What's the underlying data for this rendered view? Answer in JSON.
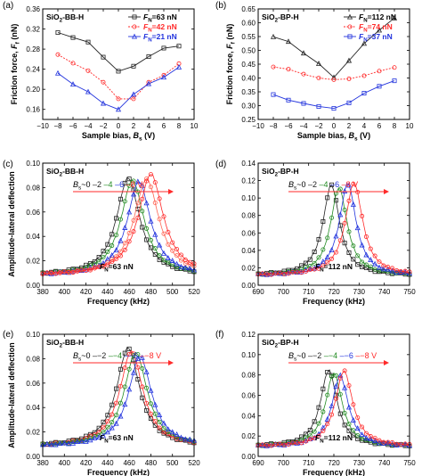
{
  "chart_data": [
    {
      "letter": "(a)",
      "type": "line",
      "title": "SiO2-BB-H",
      "xlabel": "Sample bias, B_s (V)",
      "ylabel": "Friction force, F_f (nN)",
      "x": [
        -8,
        -6,
        -4,
        -2,
        0,
        2,
        4,
        6,
        8
      ],
      "xlim": [
        -10,
        10
      ],
      "ylim": [
        0.14,
        0.36
      ],
      "xticks": [
        -10,
        -8,
        -6,
        -4,
        -2,
        0,
        2,
        4,
        6,
        8,
        10
      ],
      "yticks": [
        0.16,
        0.2,
        0.24,
        0.28,
        0.32,
        0.36
      ],
      "ytick_labels": [
        "0.16",
        "0.20",
        "0.24",
        "0.28",
        "0.32",
        "0.36"
      ],
      "legend_position": "top-right",
      "series": [
        {
          "name": "F_N=63 nN",
          "color": "#222222",
          "marker": "square",
          "dash": "",
          "values": [
            0.313,
            0.303,
            0.294,
            0.264,
            0.236,
            0.246,
            0.265,
            0.282,
            0.286
          ]
        },
        {
          "name": "F_N=42 nN",
          "color": "#ff2a2a",
          "marker": "circle",
          "dash": "2,1.5",
          "values": [
            0.269,
            0.252,
            0.237,
            0.214,
            0.181,
            0.181,
            0.214,
            0.228,
            0.251
          ]
        },
        {
          "name": "F_N=21 nN",
          "color": "#2233dd",
          "marker": "triangle",
          "dash": "",
          "values": [
            0.232,
            0.21,
            0.195,
            0.172,
            0.16,
            0.19,
            0.211,
            0.224,
            0.244
          ]
        }
      ]
    },
    {
      "letter": "(b)",
      "type": "line",
      "title": "SiO2-BP-H",
      "xlabel": "Sample bias, B_s (V)",
      "ylabel": "Friction force, F_f (nN)",
      "x": [
        -8,
        -6,
        -4,
        -2,
        0,
        2,
        4,
        6,
        8
      ],
      "xlim": [
        -10,
        10
      ],
      "ylim": [
        0.25,
        0.65
      ],
      "xticks": [
        -10,
        -8,
        -6,
        -4,
        -2,
        0,
        2,
        4,
        6,
        8,
        10
      ],
      "yticks": [
        0.25,
        0.3,
        0.35,
        0.4,
        0.45,
        0.5,
        0.55,
        0.6,
        0.65
      ],
      "ytick_labels": [
        "0.25",
        "0.30",
        "0.35",
        "0.40",
        "0.45",
        "0.50",
        "0.55",
        "0.60",
        "0.65"
      ],
      "legend_position": "top-right",
      "series": [
        {
          "name": "F_N=112 nN",
          "color": "#222222",
          "marker": "triangle-open",
          "dash": "",
          "values": [
            0.549,
            0.532,
            0.49,
            0.452,
            0.402,
            0.463,
            0.525,
            0.573,
            0.617
          ]
        },
        {
          "name": "F_N=74 nN",
          "color": "#ff2a2a",
          "marker": "circle",
          "dash": "2,1.5",
          "values": [
            0.44,
            0.432,
            0.414,
            0.4,
            0.394,
            0.397,
            0.408,
            0.425,
            0.438
          ]
        },
        {
          "name": "F_N=37 nN",
          "color": "#2233dd",
          "marker": "square",
          "dash": "",
          "values": [
            0.34,
            0.32,
            0.308,
            0.297,
            0.29,
            0.31,
            0.345,
            0.37,
            0.39
          ]
        }
      ]
    },
    {
      "letter": "(c)",
      "type": "line",
      "title": "SiO2-BB-H",
      "xlabel": "Frequency (kHz)",
      "ylabel": "Amplitude-lateral deflection",
      "xlim": [
        380,
        520
      ],
      "ylim": [
        0,
        0.1
      ],
      "xticks": [
        380,
        400,
        420,
        440,
        460,
        480,
        500,
        520
      ],
      "yticks": [
        0.0,
        0.02,
        0.04,
        0.06,
        0.08,
        0.1
      ],
      "ytick_labels": [
        "0.00",
        "0.02",
        "0.04",
        "0.06",
        "0.08",
        "0.10"
      ],
      "bias_prefix": "B_s~",
      "bias_labels": [
        "0",
        "2",
        "4",
        "6",
        "8 V"
      ],
      "bias_colors": [
        "#222222",
        "#228b22",
        "#2233dd",
        "#ff2a2a"
      ],
      "note": "F_N=63 nN",
      "series": [
        {
          "name": "0 V",
          "color": "#222222",
          "marker": "square",
          "peak_x": 459,
          "peak_y": 0.088,
          "width": 13
        },
        {
          "name": "2 V",
          "color": "#228b22",
          "marker": "circle",
          "peak_x": 463,
          "peak_y": 0.086,
          "width": 13
        },
        {
          "name": "4 V",
          "color": "#2233dd",
          "marker": "triangle",
          "peak_x": 469,
          "peak_y": 0.085,
          "width": 13
        },
        {
          "name": "6 V",
          "color": "#ff6655",
          "marker": "circle-open",
          "peak_x": 476,
          "peak_y": 0.087,
          "width": 14
        },
        {
          "name": "8 V",
          "color": "#ff2a2a",
          "marker": "circle-open",
          "peak_x": 480,
          "peak_y": 0.091,
          "width": 14
        }
      ]
    },
    {
      "letter": "(d)",
      "type": "line",
      "title": "SiO2-BP-H",
      "xlabel": "Frequency (kHz)",
      "ylabel": "",
      "xlim": [
        690,
        750
      ],
      "ylim": [
        0,
        0.14
      ],
      "xticks": [
        690,
        700,
        710,
        720,
        730,
        740,
        750
      ],
      "yticks": [
        0.0,
        0.02,
        0.04,
        0.06,
        0.08,
        0.1,
        0.12,
        0.14
      ],
      "ytick_labels": [
        "0.00",
        "0.02",
        "0.04",
        "0.06",
        "0.08",
        "0.10",
        "0.12",
        "0.14"
      ],
      "bias_prefix": "B_s~",
      "bias_labels": [
        "0",
        "2",
        "4",
        "6",
        "8 V"
      ],
      "bias_colors": [
        "#222222",
        "#228b22",
        "#2233dd",
        "#ff2a2a"
      ],
      "note": "F_N=112 nN",
      "series": [
        {
          "name": "0 V",
          "color": "#222222",
          "marker": "square",
          "peak_x": 719,
          "peak_y": 0.115,
          "width": 4
        },
        {
          "name": "2 V",
          "color": "#228b22",
          "marker": "circle",
          "peak_x": 722,
          "peak_y": 0.112,
          "width": 4
        },
        {
          "name": "4 V",
          "color": "#2233dd",
          "marker": "triangle",
          "peak_x": 725.5,
          "peak_y": 0.117,
          "width": 4
        },
        {
          "name": "6 V",
          "color": "#ff2a2a",
          "marker": "circle-open",
          "peak_x": 728,
          "peak_y": 0.117,
          "width": 4.2
        }
      ]
    },
    {
      "letter": "(e)",
      "type": "line",
      "title": "SiO2-BB-H",
      "xlabel": "Frequency (kHz)",
      "ylabel": "Amplitude-lateral deflection",
      "xlim": [
        380,
        520
      ],
      "ylim": [
        0,
        0.1
      ],
      "xticks": [
        380,
        400,
        420,
        440,
        460,
        480,
        500,
        520
      ],
      "yticks": [
        0.0,
        0.02,
        0.04,
        0.06,
        0.08,
        0.1
      ],
      "ytick_labels": [
        "0.00",
        "0.02",
        "0.04",
        "0.06",
        "0.08",
        "0.10"
      ],
      "bias_prefix": "B_s~",
      "bias_labels": [
        "0",
        "−2",
        "−4",
        "−6",
        "−8 V"
      ],
      "bias_colors": [
        "#222222",
        "#228b22",
        "#2233dd",
        "#ff2a2a"
      ],
      "note": "F_N=63 nN",
      "series": [
        {
          "name": "0 V",
          "color": "#222222",
          "marker": "square",
          "peak_x": 459,
          "peak_y": 0.089,
          "width": 13
        },
        {
          "name": "-2 V",
          "color": "#ff2a2a",
          "marker": "circle-open",
          "peak_x": 462,
          "peak_y": 0.086,
          "width": 13
        },
        {
          "name": "-4 V",
          "color": "#228b22",
          "marker": "circle",
          "peak_x": 466,
          "peak_y": 0.085,
          "width": 13
        },
        {
          "name": "-6 V",
          "color": "#2233dd",
          "marker": "triangle",
          "peak_x": 470,
          "peak_y": 0.082,
          "width": 13
        }
      ]
    },
    {
      "letter": "(f)",
      "type": "line",
      "title": "SiO2-BP-H",
      "xlabel": "Frequency (kHz)",
      "ylabel": "",
      "xlim": [
        690,
        750
      ],
      "ylim": [
        0,
        0.12
      ],
      "xticks": [
        690,
        700,
        710,
        720,
        730,
        740,
        750
      ],
      "yticks": [
        0.0,
        0.02,
        0.04,
        0.06,
        0.08,
        0.1,
        0.12
      ],
      "ytick_labels": [
        "0.00",
        "0.02",
        "0.04",
        "0.06",
        "0.08",
        "0.10",
        "0.12"
      ],
      "bias_prefix": "B_s~",
      "bias_labels": [
        "0",
        "−2",
        "−4",
        "−6",
        "−8 V"
      ],
      "bias_colors": [
        "#222222",
        "#228b22",
        "#2233dd",
        "#ff2a2a"
      ],
      "note": "F_N=112 nN",
      "series": [
        {
          "name": "0 V",
          "color": "#222222",
          "marker": "square",
          "peak_x": 718,
          "peak_y": 0.085,
          "width": 4
        },
        {
          "name": "-2 V",
          "color": "#228b22",
          "marker": "circle",
          "peak_x": 720,
          "peak_y": 0.082,
          "width": 4
        },
        {
          "name": "-4 V",
          "color": "#2233dd",
          "marker": "triangle",
          "peak_x": 722.5,
          "peak_y": 0.079,
          "width": 4
        },
        {
          "name": "-6 V",
          "color": "#ff2a2a",
          "marker": "circle-open",
          "peak_x": 724,
          "peak_y": 0.084,
          "width": 4.2
        }
      ]
    }
  ]
}
